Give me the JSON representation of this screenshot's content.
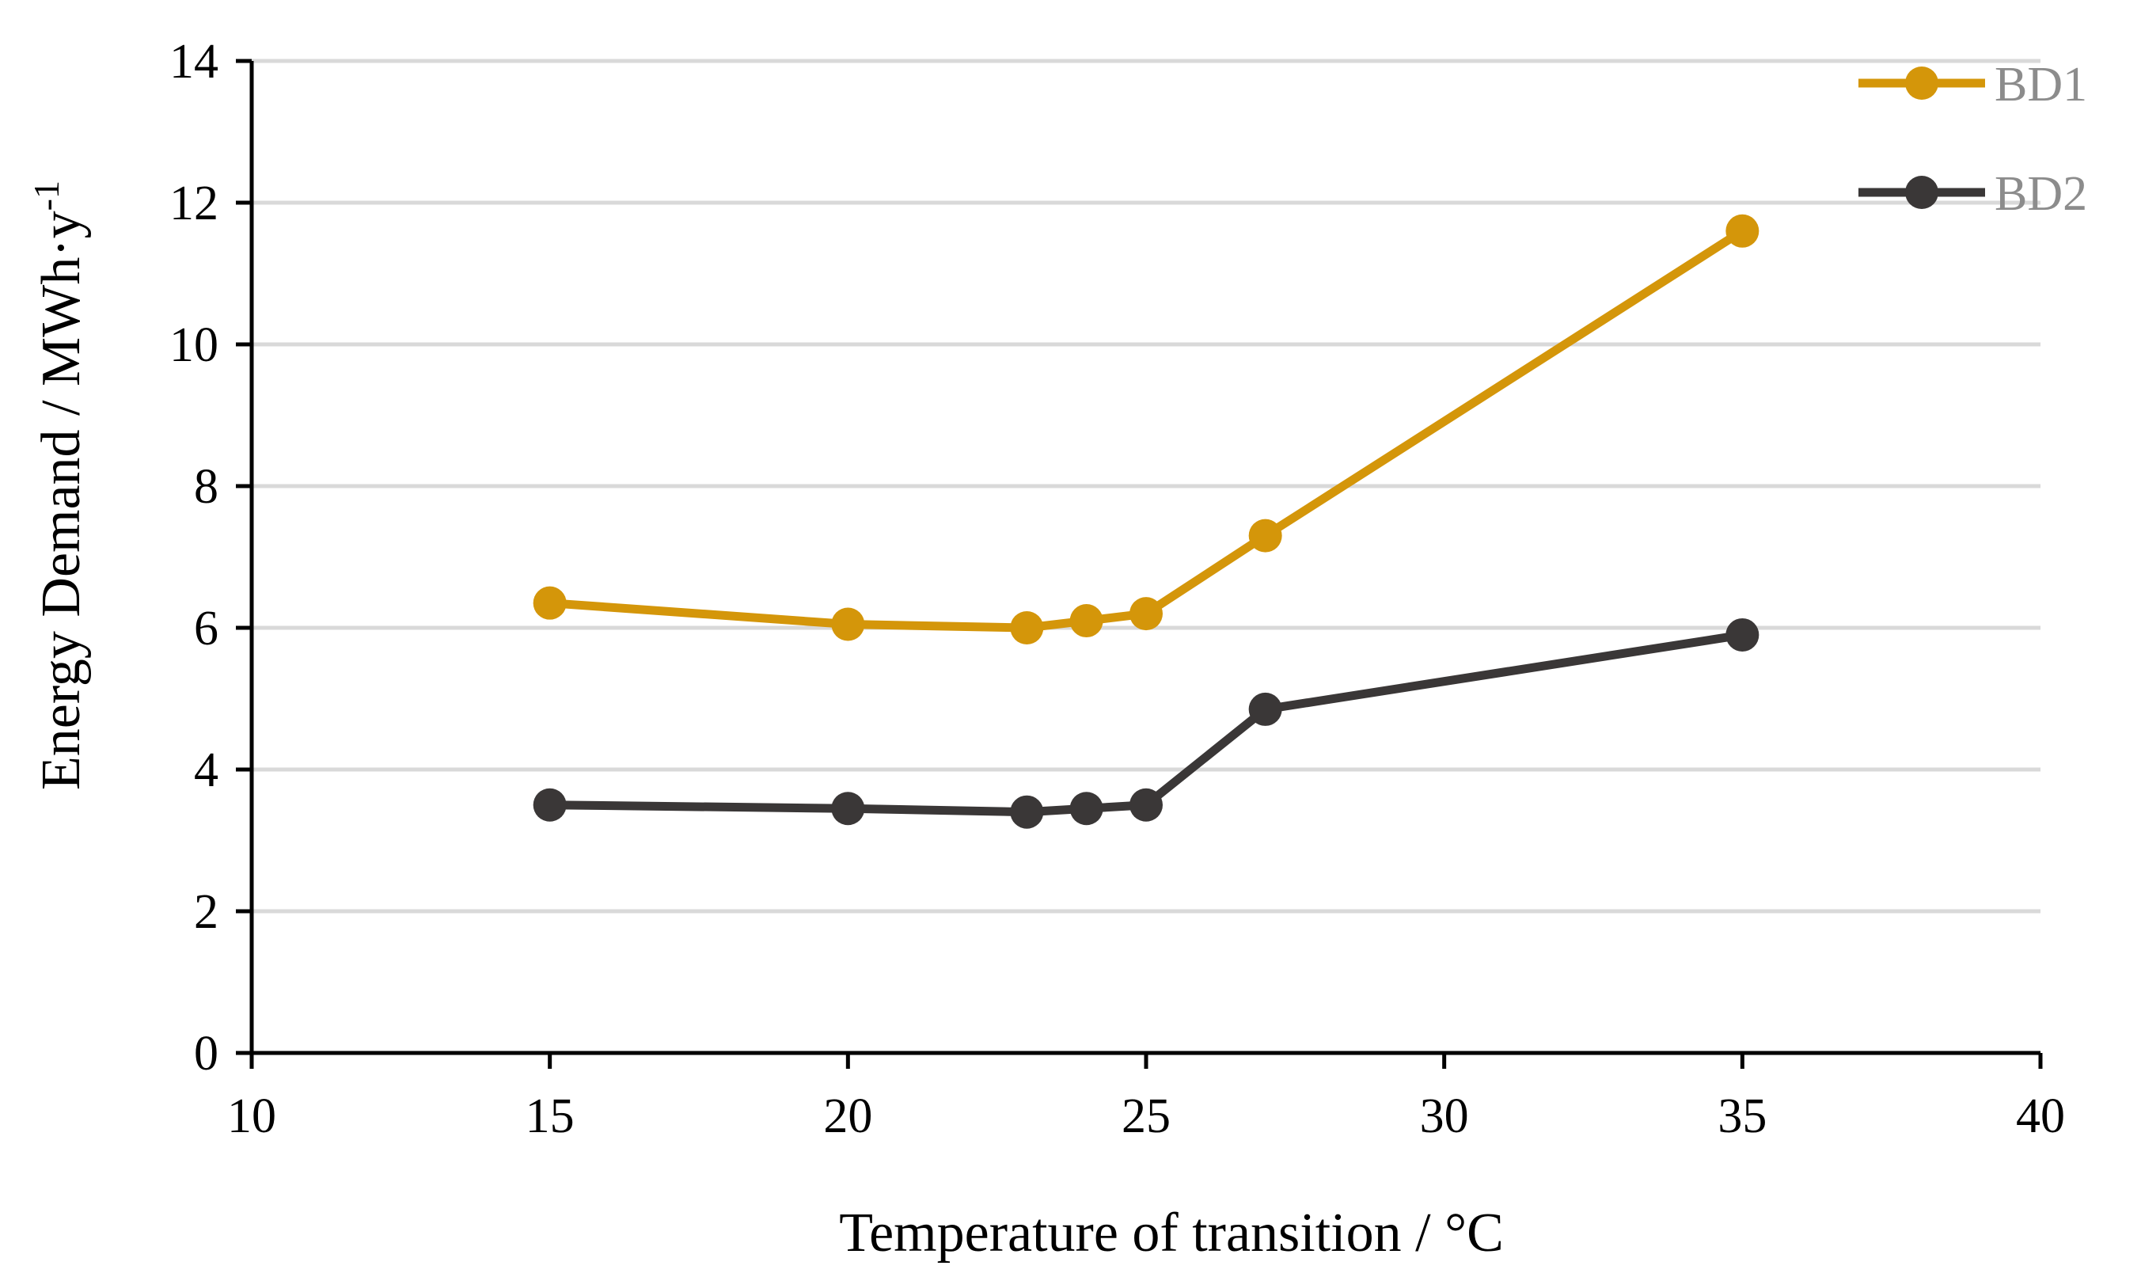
{
  "chart_data": {
    "type": "line",
    "title": "",
    "xlabel": "Temperature of transition / °C",
    "ylabel": "Energy Demand / MWh·y",
    "ylabel_superscript": "-1",
    "xlim": [
      10,
      40
    ],
    "ylim": [
      0,
      14
    ],
    "xticks": [
      "10",
      "15",
      "20",
      "25",
      "30",
      "35",
      "40"
    ],
    "yticks": [
      "0",
      "2",
      "4",
      "6",
      "8",
      "10",
      "12",
      "14"
    ],
    "grid": "horizontal",
    "legend_position": "top-right",
    "series": [
      {
        "name": "BD1",
        "color": "#D4960A",
        "x": [
          15,
          20,
          23,
          24,
          25,
          27,
          35
        ],
        "y": [
          6.35,
          6.05,
          6.0,
          6.1,
          6.2,
          7.3,
          11.6
        ]
      },
      {
        "name": "BD2",
        "color": "#3A3737",
        "x": [
          15,
          20,
          23,
          24,
          25,
          27,
          35
        ],
        "y": [
          3.5,
          3.45,
          3.4,
          3.45,
          3.5,
          4.85,
          5.9
        ]
      }
    ]
  }
}
